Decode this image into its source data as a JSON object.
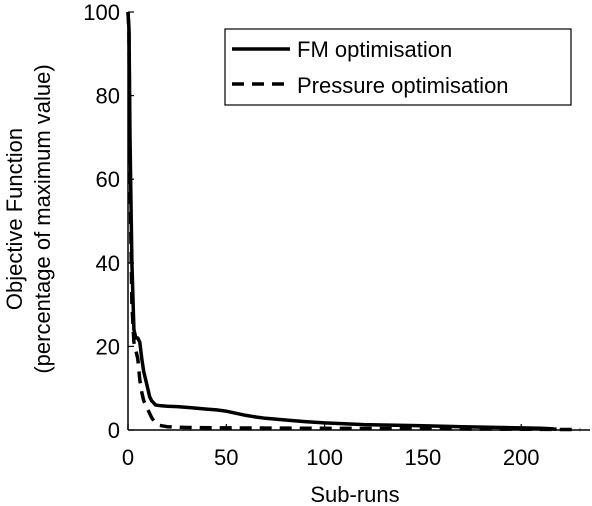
{
  "chart_data": {
    "type": "line",
    "xlabel": "Sub-runs",
    "ylabel_line1": "Objective Function",
    "ylabel_line2": "(percentage of maximum value)",
    "xlim": [
      0,
      235
    ],
    "ylim": [
      0,
      100
    ],
    "x_ticks": [
      0,
      50,
      100,
      150,
      200
    ],
    "y_ticks": [
      0,
      20,
      40,
      60,
      80,
      100
    ],
    "legend_position": "top-right",
    "series": [
      {
        "name": "FM optimisation",
        "style": "solid",
        "color": "#000000",
        "x": [
          0,
          0.5,
          1,
          2,
          3,
          4,
          5,
          6,
          7,
          8,
          9,
          10,
          11,
          12,
          13,
          14,
          15,
          17,
          20,
          25,
          30,
          35,
          40,
          45,
          50,
          55,
          60,
          65,
          70,
          80,
          90,
          100,
          110,
          120,
          130,
          140,
          150,
          160,
          170,
          180,
          190,
          200,
          210,
          215,
          218
        ],
        "y": [
          100,
          96,
          70,
          40,
          24,
          22,
          22,
          21,
          17,
          14,
          12,
          10,
          8,
          7,
          6.5,
          6,
          5.9,
          5.8,
          5.7,
          5.6,
          5.4,
          5.2,
          5.0,
          4.8,
          4.5,
          4.0,
          3.5,
          3.1,
          2.8,
          2.4,
          2.0,
          1.7,
          1.5,
          1.3,
          1.2,
          1.1,
          1.0,
          0.9,
          0.8,
          0.7,
          0.6,
          0.5,
          0.4,
          0.3,
          0.2
        ]
      },
      {
        "name": "Pressure optimisation",
        "style": "dashed",
        "color": "#000000",
        "x": [
          0,
          0.5,
          1,
          2,
          3,
          4,
          5,
          6,
          7,
          8,
          9,
          10,
          11,
          12,
          13,
          14,
          16,
          20,
          30,
          50,
          100,
          150,
          200,
          230
        ],
        "y": [
          100,
          95,
          60,
          30,
          21,
          19,
          17,
          12,
          9,
          7,
          6,
          5,
          4,
          3,
          2.3,
          1.7,
          1.1,
          0.8,
          0.6,
          0.5,
          0.4,
          0.3,
          0.2,
          0.1
        ]
      }
    ]
  }
}
